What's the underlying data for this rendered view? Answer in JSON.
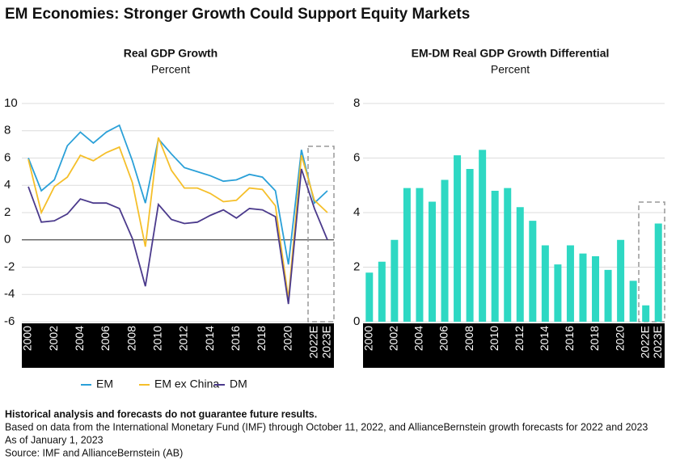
{
  "title": "EM Economies: Stronger Growth Could Support Equity Markets",
  "chart_data": [
    {
      "type": "line",
      "title": "Real GDP Growth",
      "subtitle": "Percent",
      "categories": [
        "2000",
        null,
        "2002",
        null,
        "2004",
        null,
        "2006",
        null,
        "2008",
        null,
        "2010",
        null,
        "2012",
        null,
        "2014",
        null,
        "2016",
        null,
        "2018",
        null,
        "2020",
        null,
        "2022E",
        "2023E"
      ],
      "series": [
        {
          "name": "EM",
          "color": "#2aa0d8",
          "values": [
            6.0,
            3.6,
            4.4,
            6.9,
            7.9,
            7.1,
            7.9,
            8.4,
            5.8,
            2.7,
            7.4,
            6.3,
            5.3,
            5.0,
            4.7,
            4.3,
            4.4,
            4.8,
            4.6,
            3.6,
            -1.8,
            6.6,
            2.7,
            3.6
          ]
        },
        {
          "name": "EM ex China",
          "color": "#f5bf2a",
          "values": [
            5.9,
            2.0,
            3.9,
            4.6,
            6.2,
            5.8,
            6.4,
            6.8,
            4.2,
            -0.5,
            7.5,
            5.1,
            3.8,
            3.8,
            3.4,
            2.8,
            2.9,
            3.8,
            3.7,
            2.5,
            -4.3,
            6.2,
            2.9,
            2.0
          ]
        },
        {
          "name": "DM",
          "color": "#4b3a8c",
          "values": [
            3.9,
            1.3,
            1.4,
            1.9,
            3.0,
            2.7,
            2.7,
            2.3,
            0.1,
            -3.4,
            2.6,
            1.5,
            1.2,
            1.3,
            1.8,
            2.2,
            1.6,
            2.3,
            2.2,
            1.7,
            -4.7,
            5.2,
            2.3,
            0
          ]
        }
      ],
      "ylim": [
        -6,
        10
      ],
      "yticks": [
        -6,
        -4,
        -2,
        0,
        2,
        4,
        6,
        8,
        10
      ],
      "grid": true
    },
    {
      "type": "bar",
      "title": "EM-DM Real GDP Growth Differential",
      "subtitle": "Percent",
      "categories": [
        "2000",
        null,
        "2002",
        null,
        "2004",
        null,
        "2006",
        null,
        "2008",
        null,
        "2010",
        null,
        "2012",
        null,
        "2014",
        null,
        "2016",
        null,
        "2018",
        null,
        "2020",
        null,
        "2022E",
        "2023E"
      ],
      "values": [
        1.8,
        2.2,
        3.0,
        4.9,
        4.9,
        4.4,
        5.2,
        6.1,
        5.6,
        6.3,
        4.8,
        4.9,
        4.2,
        3.7,
        2.8,
        2.1,
        2.8,
        2.5,
        2.4,
        1.9,
        3.0,
        1.5,
        0.6,
        3.6
      ],
      "color": "#2ed8c3",
      "ylim": [
        0,
        8
      ],
      "yticks": [
        0,
        2,
        4,
        6,
        8
      ],
      "grid": true
    }
  ],
  "notes": [
    "Historical analysis and forecasts do not guarantee future results.",
    "Based on data from the International Monetary Fund (IMF) through October 11, 2022, and AllianceBernstein growth forecasts for 2022 and 2023",
    "As of January 1, 2023",
    "Source: IMF and AllianceBernstein (AB)"
  ]
}
